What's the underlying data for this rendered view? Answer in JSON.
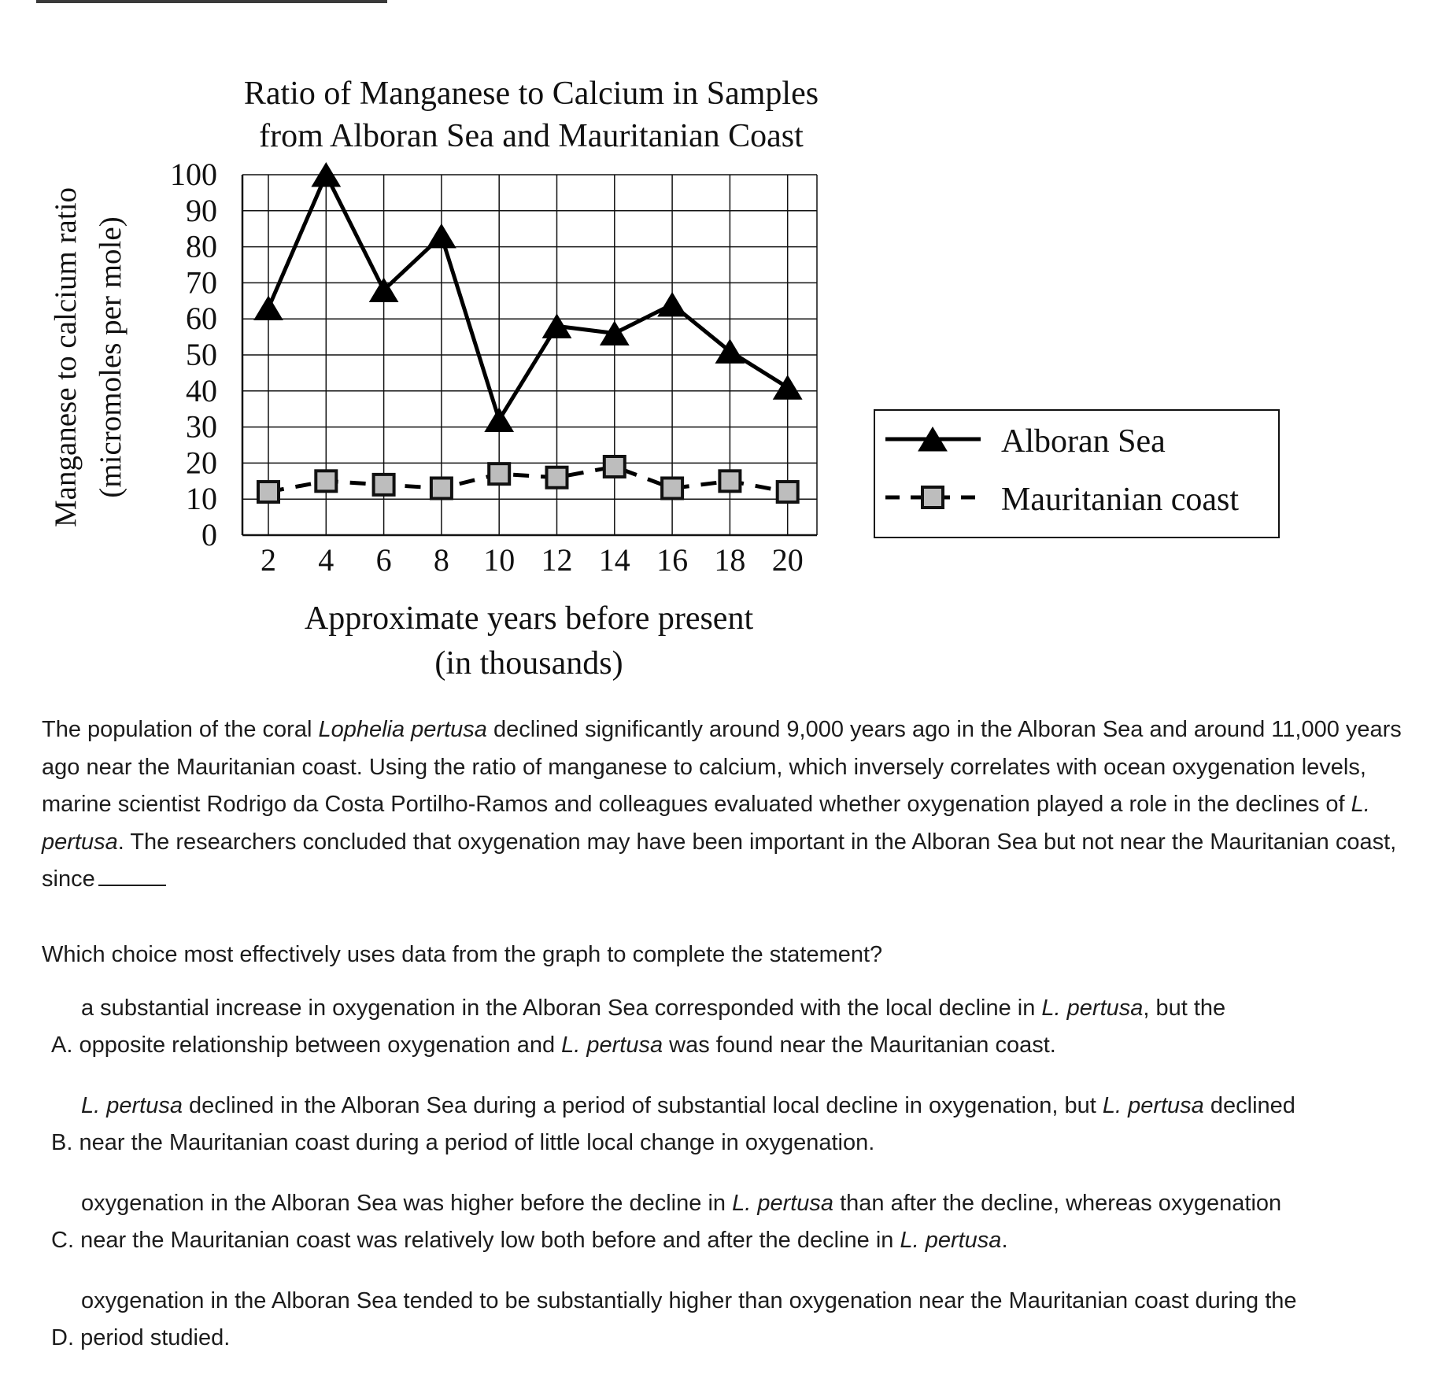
{
  "chart_data": {
    "type": "line",
    "title_lines": [
      "Ratio of Manganese to Calcium in Samples",
      "from Alboran Sea and Mauritanian Coast"
    ],
    "xlabel_lines": [
      "Approximate years before present",
      "(in thousands)"
    ],
    "ylabel_lines": [
      "Manganese to calcium ratio",
      "(micromoles per mole)"
    ],
    "x": [
      2,
      4,
      6,
      8,
      10,
      12,
      14,
      16,
      18,
      20
    ],
    "x_tick_labels": [
      "2",
      "4",
      "6",
      "8",
      "10",
      "12",
      "14",
      "16",
      "18",
      "20"
    ],
    "y_ticks": [
      0,
      10,
      20,
      30,
      40,
      50,
      60,
      70,
      80,
      90,
      100
    ],
    "y_tick_labels": [
      "0",
      "10",
      "20",
      "30",
      "40",
      "50",
      "60",
      "70",
      "80",
      "90",
      "100"
    ],
    "ylim": [
      0,
      100
    ],
    "grid": true,
    "legend_position": "right",
    "series": [
      {
        "name": "Alboran Sea",
        "marker": "triangle",
        "line": "solid",
        "color": "#000000",
        "values": [
          63,
          100,
          68,
          83,
          32,
          58,
          56,
          64,
          51,
          41
        ]
      },
      {
        "name": "Mauritanian coast",
        "marker": "square",
        "line": "dashed",
        "color": "#000000",
        "marker_fill": "#bdbdbd",
        "values": [
          12,
          15,
          14,
          13,
          17,
          16,
          19,
          13,
          15,
          12
        ]
      }
    ]
  },
  "passage": {
    "p1": "The population of the coral ",
    "p2": "Lophelia pertusa",
    "p3": " declined significantly around 9,000 years ago in the Alboran Sea and around 11,000 years ago near the Mauritanian coast. Using the ratio of manganese to calcium, which inversely correlates with ocean oxygenation levels, marine scientist Rodrigo da Costa Portilho-Ramos and colleagues evaluated whether oxygenation played a role in the declines of ",
    "p4": "L. pertusa",
    "p5": ". The researchers concluded that oxygenation may have been important in the Alboran Sea but not near the Mauritanian coast, since"
  },
  "question": "Which choice most effectively uses data from the graph to complete the statement?",
  "choices": {
    "a": {
      "letter": "A.",
      "l1a": "a substantial increase in oxygenation in the Alboran Sea corresponded with the local decline in ",
      "l1b": "L. pertusa",
      "l1c": ", but the",
      "l2a": "opposite relationship between oxygenation and ",
      "l2b": "L. pertusa",
      "l2c": " was found near the Mauritanian coast."
    },
    "b": {
      "letter": "B.",
      "l1a": "L. pertusa",
      "l1b": " declined in the Alboran Sea during a period of substantial local decline in oxygenation, but ",
      "l1c": "L. pertusa",
      "l1d": " declined",
      "l2a": "near the Mauritanian coast during a period of little local change in oxygenation."
    },
    "c": {
      "letter": "C.",
      "l1a": "oxygenation in the Alboran Sea was higher before the decline in ",
      "l1b": "L. pertusa",
      "l1c": " than after the decline, whereas oxygenation",
      "l2a": "near the Mauritanian coast was relatively low both before and after the decline in ",
      "l2b": "L. pertusa",
      "l2c": "."
    },
    "d": {
      "letter": "D.",
      "l1a": "oxygenation in the Alboran Sea tended to be substantially higher than oxygenation near the Mauritanian coast during the",
      "l2a": "period studied."
    }
  }
}
